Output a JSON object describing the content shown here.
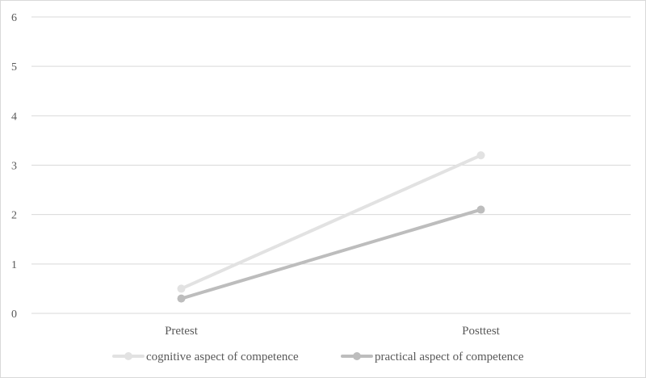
{
  "chart_data": {
    "type": "line",
    "categories": [
      "Pretest",
      "Posttest"
    ],
    "series": [
      {
        "name": "cognitive aspect of competence",
        "values": [
          0.5,
          3.2
        ],
        "color": "#e2e2e2"
      },
      {
        "name": "practical aspect of competence",
        "values": [
          0.3,
          2.1
        ],
        "color": "#bdbdbd"
      }
    ],
    "ylim": [
      0,
      6
    ],
    "yticks": [
      "0",
      "1",
      "2",
      "3",
      "4",
      "5",
      "6"
    ],
    "grid": true,
    "legend_position": "bottom",
    "gridline_color": "#d9d9d9"
  }
}
